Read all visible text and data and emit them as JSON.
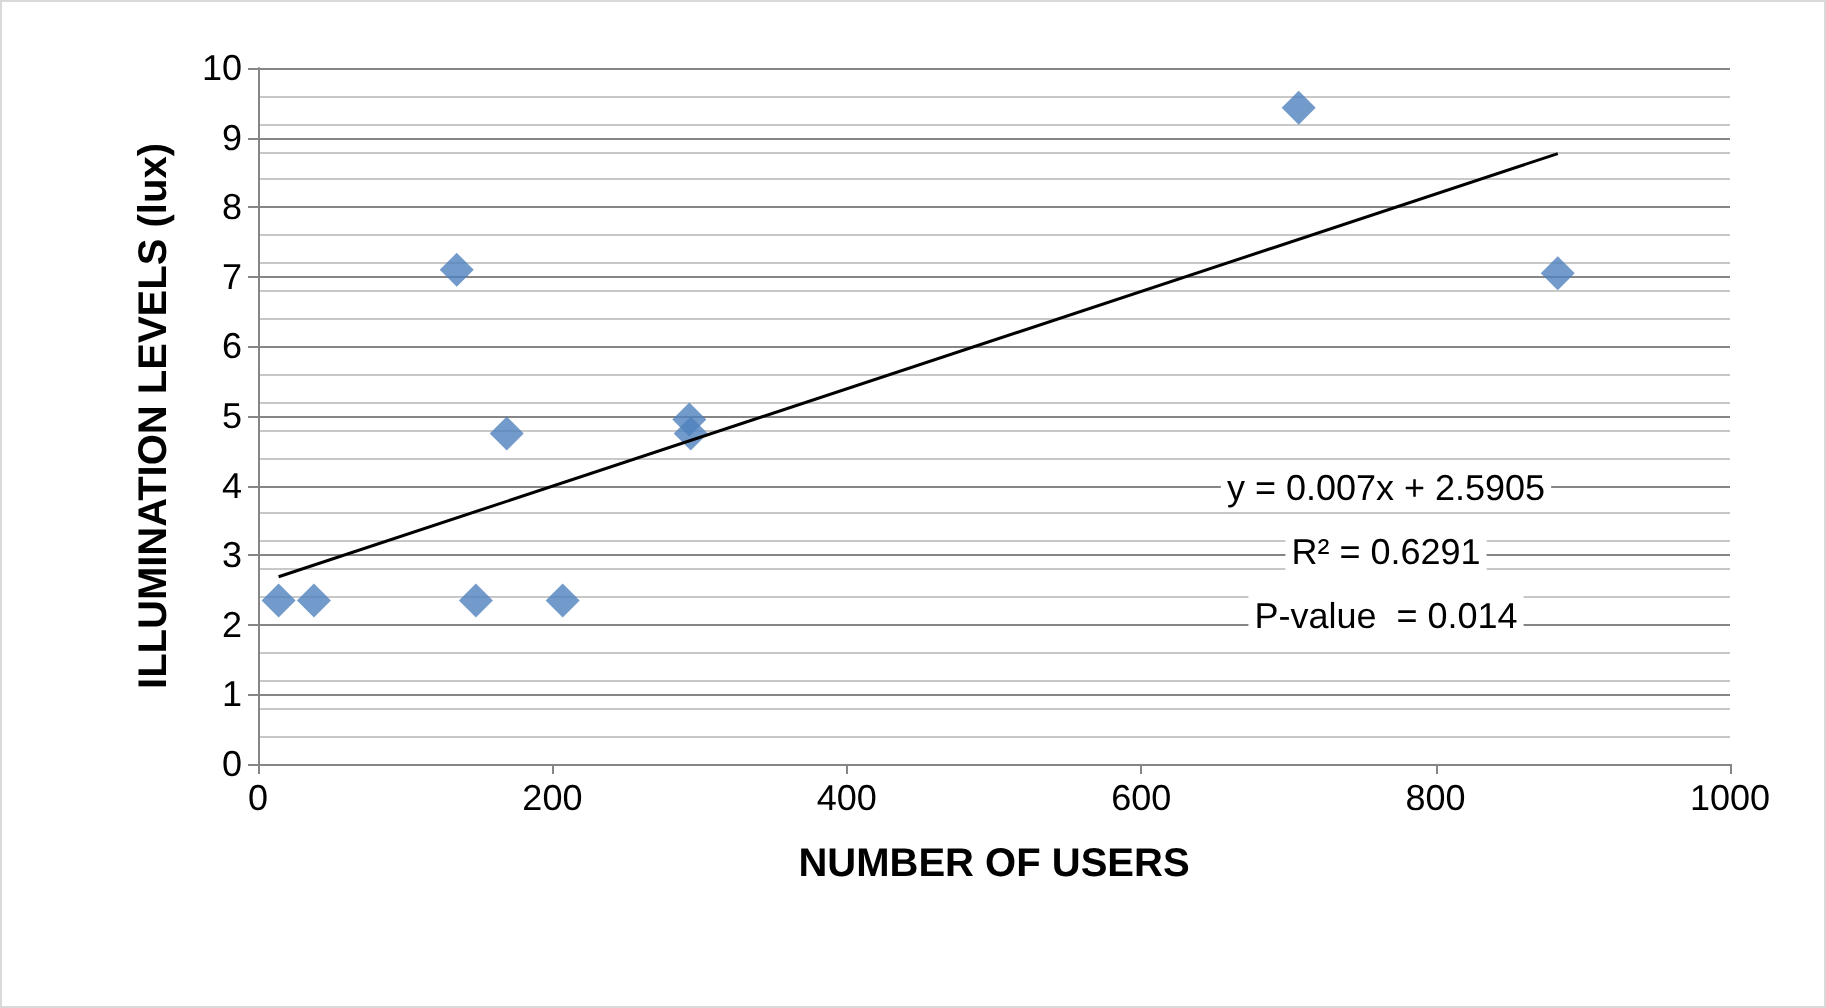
{
  "chart_data": {
    "type": "scatter",
    "xlabel": "NUMBER OF USERS",
    "ylabel": "ILLUMINATION LEVELS (lux)",
    "xlim": [
      0,
      1000
    ],
    "xticks": [
      0,
      200,
      400,
      600,
      800,
      1000
    ],
    "ylim": [
      0,
      10
    ],
    "yticks": [
      0,
      1,
      2,
      3,
      4,
      5,
      6,
      7,
      8,
      9,
      10
    ],
    "grid": "y",
    "marker": "diamond",
    "series": [
      {
        "color": "#4f81bd",
        "x": [
          14,
          38,
          148,
          207,
          135,
          169,
          293,
          294,
          707,
          883
        ],
        "values": [
          2.35,
          2.35,
          2.35,
          2.35,
          7.1,
          4.75,
          4.95,
          4.75,
          9.43,
          7.05
        ]
      },
      {
        "type": "line",
        "marker": "none",
        "color": "#000000",
        "x": [
          14,
          883
        ],
        "values": [
          2.69,
          8.77
        ]
      }
    ],
    "annotations": [
      "y = 0.007x + 2.5905",
      "R² = 0.6291",
      "P-value  = 0.014"
    ]
  }
}
